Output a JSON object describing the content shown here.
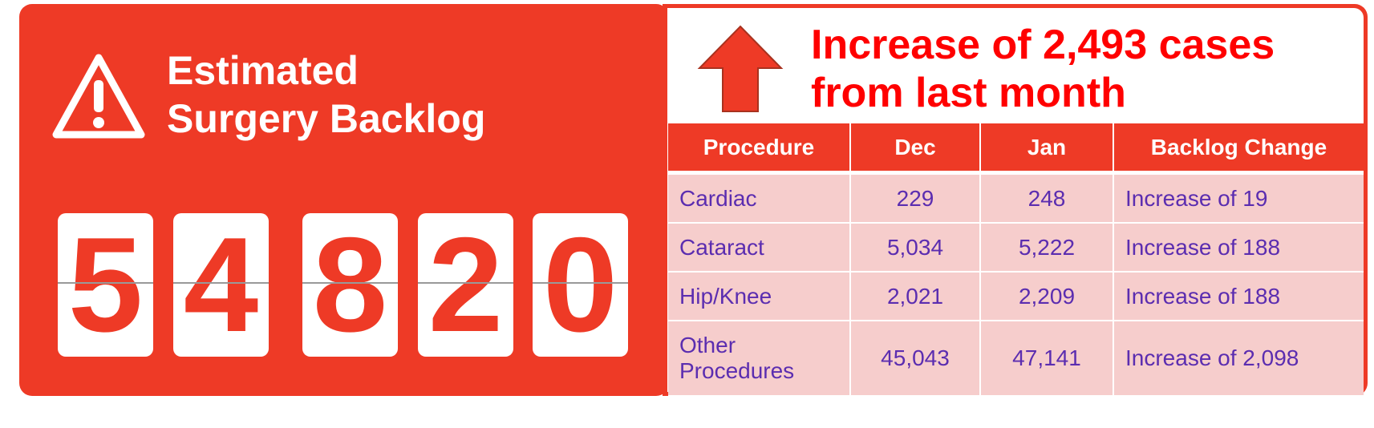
{
  "panel": {
    "title_line1": "Estimated",
    "title_line2": "Surgery Backlog",
    "digits": [
      "5",
      "4",
      "8",
      "2",
      "0"
    ],
    "icon": "warning-triangle-icon"
  },
  "summary": {
    "line1": "Increase of 2,493 cases",
    "line2": "from last month",
    "icon": "up-arrow-icon"
  },
  "table": {
    "headers": [
      "Procedure",
      "Dec",
      "Jan",
      "Backlog Change"
    ],
    "rows": [
      {
        "procedure": "Cardiac",
        "dec": "229",
        "jan": "248",
        "change": "Increase of 19"
      },
      {
        "procedure": "Cataract",
        "dec": "5,034",
        "jan": "5,222",
        "change": "Increase of 188"
      },
      {
        "procedure": "Hip/Knee",
        "dec": "2,021",
        "jan": "2,209",
        "change": "Increase of 188"
      },
      {
        "procedure": "Other Procedures",
        "dec": "45,043",
        "jan": "47,141",
        "change": "Increase of 2,098"
      }
    ]
  },
  "colors": {
    "brand_red": "#EE3A26",
    "headline_red": "#FF0000",
    "row_pink": "#F6CDCC",
    "text_purple": "#5B2DB0"
  }
}
